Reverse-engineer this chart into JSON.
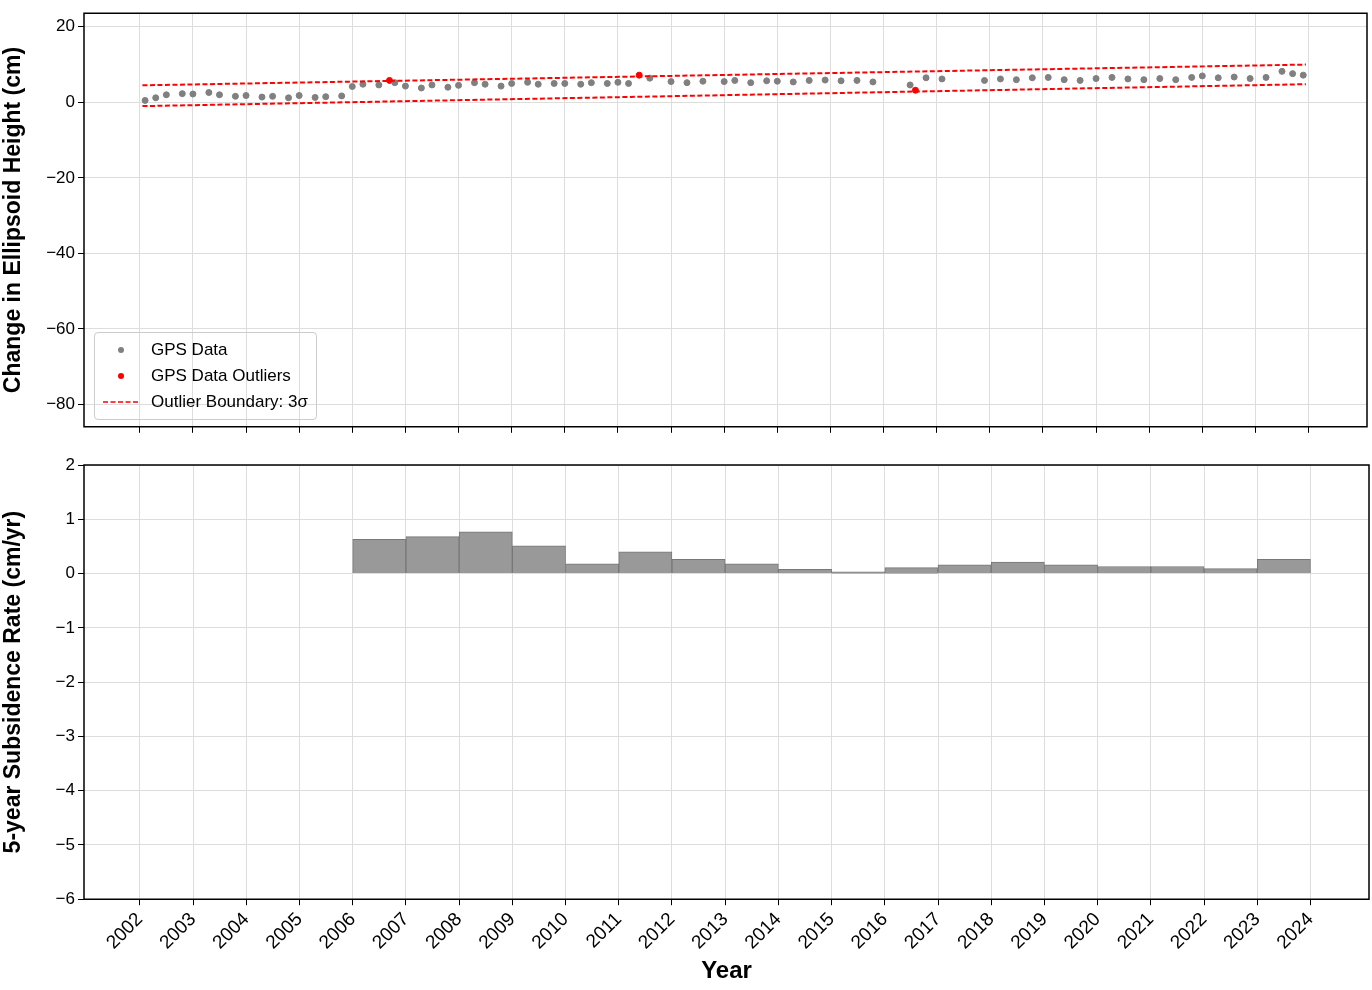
{
  "chart_data": [
    {
      "type": "scatter",
      "ylabel": "Change in Ellipsoid Height (cm)",
      "xlim": [
        2000.95,
        2025.1
      ],
      "xticks": [
        2002,
        2003,
        2004,
        2005,
        2006,
        2007,
        2008,
        2009,
        2010,
        2011,
        2012,
        2013,
        2014,
        2015,
        2016,
        2017,
        2018,
        2019,
        2020,
        2021,
        2022,
        2023,
        2024
      ],
      "ylim": [
        -85.9,
        23.6
      ],
      "yticks": [
        -80,
        -60,
        -40,
        -20,
        0,
        20
      ],
      "grid": true,
      "legend": "bottom left",
      "tick_labels": "y",
      "marker": "circle",
      "series": [
        {
          "name": "GPS Data",
          "color": "#808080",
          "type": "scatter",
          "x": [
            2002.1,
            2002.3,
            2002.5,
            2002.8,
            2003,
            2003.3,
            2003.5,
            2003.8,
            2004,
            2004.3,
            2004.5,
            2004.8,
            2005,
            2005.3,
            2005.5,
            2005.8,
            2006,
            2006.2,
            2006.5,
            2006.8,
            2007,
            2007.3,
            2007.5,
            2007.8,
            2008,
            2008.3,
            2008.5,
            2008.8,
            2009,
            2009.3,
            2009.5,
            2009.8,
            2010,
            2010.3,
            2010.5,
            2010.8,
            2011,
            2011.2,
            2011.6,
            2012,
            2012.3,
            2012.6,
            2013,
            2013.2,
            2013.5,
            2013.8,
            2014,
            2014.3,
            2014.6,
            2014.9,
            2015.2,
            2015.5,
            2015.8,
            2016.5,
            2016.8,
            2017.1,
            2017.9,
            2018.2,
            2018.5,
            2018.8,
            2019.1,
            2019.4,
            2019.7,
            2020,
            2020.3,
            2020.6,
            2020.9,
            2021.2,
            2021.5,
            2021.8,
            2022,
            2022.3,
            2022.6,
            2022.9,
            2023.2,
            2023.5,
            2023.7,
            2023.9
          ],
          "values": [
            0.5,
            1.2,
            2.0,
            2.3,
            2.2,
            2.6,
            2.0,
            1.6,
            1.8,
            1.4,
            1.6,
            1.2,
            1.8,
            1.3,
            1.5,
            1.7,
            4.2,
            4.8,
            4.6,
            5.2,
            4.3,
            3.8,
            4.6,
            4.0,
            4.5,
            5.2,
            4.8,
            4.3,
            5.0,
            5.3,
            4.8,
            5.0,
            5.0,
            4.8,
            5.2,
            5.0,
            5.3,
            5.0,
            6.4,
            5.5,
            5.2,
            5.6,
            5.5,
            5.8,
            5.2,
            5.7,
            5.6,
            5.4,
            5.8,
            5.9,
            5.7,
            5.8,
            5.4,
            4.6,
            6.5,
            6.2,
            5.8,
            6.2,
            6.0,
            6.5,
            6.6,
            6.0,
            5.8,
            6.3,
            6.6,
            6.2,
            6.0,
            6.3,
            6.0,
            6.6,
            7.0,
            6.5,
            6.7,
            6.3,
            6.6,
            8.2,
            7.6,
            7.2
          ]
        },
        {
          "name": "GPS Data Outliers",
          "color": "#ff0000",
          "type": "scatter",
          "x": [
            2006.7,
            2011.4,
            2016.6
          ],
          "values": [
            5.8,
            7.2,
            3.2
          ]
        },
        {
          "name": "Outlier Boundary: 3σ",
          "color": "#ff0000",
          "type": "line",
          "line_style": "dashed",
          "marker": "none",
          "x": [
            2002.05,
            2023.95
          ],
          "values": [
            4.5,
            10.0
          ]
        },
        {
          "color": "#ff0000",
          "type": "line",
          "line_style": "dashed",
          "marker": "none",
          "x": [
            2002.05,
            2023.95
          ],
          "values": [
            -1.0,
            4.8
          ]
        }
      ]
    },
    {
      "type": "histogram",
      "xlabel": "Year",
      "ylabel": "5-year Subsidence Rate (cm/yr)",
      "xlim": [
        2000.95,
        2025.1
      ],
      "xticks": [
        2002,
        2003,
        2004,
        2005,
        2006,
        2007,
        2008,
        2009,
        2010,
        2011,
        2012,
        2013,
        2014,
        2015,
        2016,
        2017,
        2018,
        2019,
        2020,
        2021,
        2022,
        2023,
        2024
      ],
      "ylim": [
        -6,
        2
      ],
      "yticks": [
        -6,
        -5,
        -4,
        -3,
        -2,
        -1,
        0,
        1,
        2
      ],
      "grid": true,
      "color": "#999999",
      "bins": [
        2006,
        2007,
        2008,
        2009,
        2010,
        2011,
        2012,
        2013,
        2014,
        2015,
        2016,
        2017,
        2018,
        2019,
        2020,
        2021,
        2022,
        2023,
        2024
      ],
      "values": [
        0.63,
        0.68,
        0.77,
        0.51,
        0.18,
        0.4,
        0.26,
        0.18,
        0.08,
        0.03,
        0.11,
        0.16,
        0.21,
        0.16,
        0.13,
        0.13,
        0.09,
        0.26
      ]
    }
  ]
}
